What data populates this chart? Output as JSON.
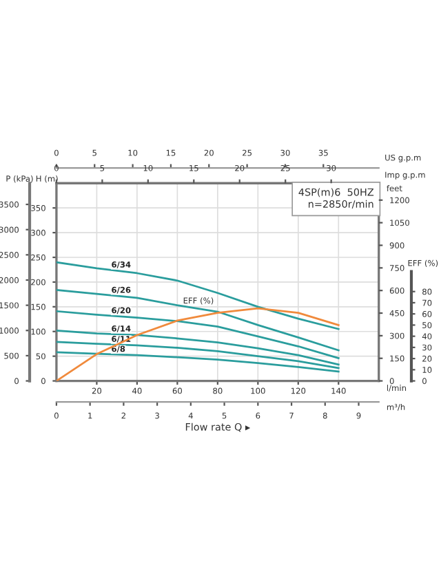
{
  "chart_data": [
    {
      "type": "line",
      "x": [
        0,
        20,
        40,
        60,
        80,
        100,
        120,
        140
      ],
      "series": [
        {
          "name": "6/34",
          "color": "#2a9d9d",
          "values": [
            240,
            228,
            218,
            203,
            178,
            150,
            126,
            105
          ]
        },
        {
          "name": "6/26",
          "color": "#2a9d9d",
          "values": [
            184,
            176,
            168,
            153,
            140,
            113,
            88,
            62
          ]
        },
        {
          "name": "6/20",
          "color": "#2a9d9d",
          "values": [
            141,
            134,
            128,
            121,
            110,
            90,
            70,
            46
          ]
        },
        {
          "name": "6/14",
          "color": "#2a9d9d",
          "values": [
            102,
            96,
            93,
            86,
            78,
            66,
            52,
            33
          ]
        },
        {
          "name": "6/11",
          "color": "#2a9d9d",
          "values": [
            79,
            75,
            72,
            67,
            60,
            50,
            40,
            26
          ]
        },
        {
          "name": "6/8",
          "color": "#2a9d9d",
          "values": [
            58,
            55,
            52,
            48,
            43,
            36,
            28,
            19
          ]
        }
      ],
      "xlabel": "l/min",
      "xlim": [
        0,
        160
      ],
      "xticks": [
        20,
        40,
        60,
        80,
        100,
        120,
        140
      ],
      "x2label": "US g.p.m",
      "x2lim": [
        0,
        42.27
      ],
      "x2ticks": [
        0,
        5,
        10,
        15,
        20,
        25,
        30,
        35
      ],
      "ylabel": "H (m)",
      "ylim": [
        0,
        400
      ],
      "yticks": [
        0,
        50,
        100,
        150,
        200,
        250,
        300,
        350
      ],
      "y2label": "feet",
      "y2lim": [
        0,
        1312
      ],
      "y2ticks": [
        0,
        150,
        300,
        450,
        600,
        750,
        900,
        1050,
        1200
      ],
      "y3label": "P (kPa)",
      "y3lim": [
        0,
        3920
      ],
      "y3ticks": [
        0,
        500,
        1000,
        1500,
        2000,
        2500,
        3000,
        3500
      ],
      "annotations": [
        "4SP(m)6  50HZ\nn=2850r/min",
        "Flow rate Q ▸"
      ],
      "grid": true,
      "legend": false,
      "marker": "none",
      "line_style": "solid"
    },
    {
      "type": "line",
      "series": [
        {
          "name": "EFF (%)",
          "color": "#f08a3c",
          "x": [
            0,
            0.6,
            1.2,
            2.4,
            3.6,
            4.8,
            6.0,
            7.2,
            8.4
          ],
          "values": [
            0,
            12,
            24,
            41,
            54,
            61,
            65,
            61,
            50
          ]
        }
      ],
      "xlabel": "m³/h",
      "xlim": [
        0,
        9.6
      ],
      "xticks": [
        0,
        1,
        2,
        3,
        4,
        5,
        6,
        7,
        8,
        9
      ],
      "x2label": "Imp g.p.m",
      "x2lim": [
        0,
        35.2
      ],
      "x2ticks": [
        0,
        5,
        10,
        15,
        20,
        25,
        30
      ],
      "ylabel": "EFF (%)",
      "ylim": [
        0,
        177
      ],
      "yticks": [
        0,
        10,
        20,
        30,
        40,
        50,
        60,
        70,
        80
      ],
      "legend": false,
      "marker": "none",
      "line_style": "solid"
    }
  ]
}
